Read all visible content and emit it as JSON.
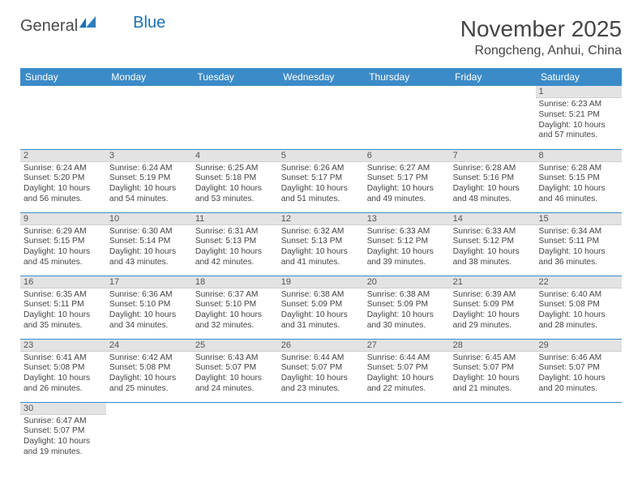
{
  "logo": {
    "text1": "General",
    "text2": "Blue"
  },
  "title": "November 2025",
  "subtitle": "Rongcheng, Anhui, China",
  "colors": {
    "header_bg": "#3b8bc8",
    "header_text": "#ffffff",
    "daynum_bg": "#e3e3e3",
    "text": "#444444",
    "row_border": "#3b8bc8"
  },
  "day_headers": [
    "Sunday",
    "Monday",
    "Tuesday",
    "Wednesday",
    "Thursday",
    "Friday",
    "Saturday"
  ],
  "weeks": [
    [
      null,
      null,
      null,
      null,
      null,
      null,
      {
        "n": "1",
        "sr": "6:23 AM",
        "ss": "5:21 PM",
        "dl": "10 hours and 57 minutes."
      }
    ],
    [
      {
        "n": "2",
        "sr": "6:24 AM",
        "ss": "5:20 PM",
        "dl": "10 hours and 56 minutes."
      },
      {
        "n": "3",
        "sr": "6:24 AM",
        "ss": "5:19 PM",
        "dl": "10 hours and 54 minutes."
      },
      {
        "n": "4",
        "sr": "6:25 AM",
        "ss": "5:18 PM",
        "dl": "10 hours and 53 minutes."
      },
      {
        "n": "5",
        "sr": "6:26 AM",
        "ss": "5:17 PM",
        "dl": "10 hours and 51 minutes."
      },
      {
        "n": "6",
        "sr": "6:27 AM",
        "ss": "5:17 PM",
        "dl": "10 hours and 49 minutes."
      },
      {
        "n": "7",
        "sr": "6:28 AM",
        "ss": "5:16 PM",
        "dl": "10 hours and 48 minutes."
      },
      {
        "n": "8",
        "sr": "6:28 AM",
        "ss": "5:15 PM",
        "dl": "10 hours and 46 minutes."
      }
    ],
    [
      {
        "n": "9",
        "sr": "6:29 AM",
        "ss": "5:15 PM",
        "dl": "10 hours and 45 minutes."
      },
      {
        "n": "10",
        "sr": "6:30 AM",
        "ss": "5:14 PM",
        "dl": "10 hours and 43 minutes."
      },
      {
        "n": "11",
        "sr": "6:31 AM",
        "ss": "5:13 PM",
        "dl": "10 hours and 42 minutes."
      },
      {
        "n": "12",
        "sr": "6:32 AM",
        "ss": "5:13 PM",
        "dl": "10 hours and 41 minutes."
      },
      {
        "n": "13",
        "sr": "6:33 AM",
        "ss": "5:12 PM",
        "dl": "10 hours and 39 minutes."
      },
      {
        "n": "14",
        "sr": "6:33 AM",
        "ss": "5:12 PM",
        "dl": "10 hours and 38 minutes."
      },
      {
        "n": "15",
        "sr": "6:34 AM",
        "ss": "5:11 PM",
        "dl": "10 hours and 36 minutes."
      }
    ],
    [
      {
        "n": "16",
        "sr": "6:35 AM",
        "ss": "5:11 PM",
        "dl": "10 hours and 35 minutes."
      },
      {
        "n": "17",
        "sr": "6:36 AM",
        "ss": "5:10 PM",
        "dl": "10 hours and 34 minutes."
      },
      {
        "n": "18",
        "sr": "6:37 AM",
        "ss": "5:10 PM",
        "dl": "10 hours and 32 minutes."
      },
      {
        "n": "19",
        "sr": "6:38 AM",
        "ss": "5:09 PM",
        "dl": "10 hours and 31 minutes."
      },
      {
        "n": "20",
        "sr": "6:38 AM",
        "ss": "5:09 PM",
        "dl": "10 hours and 30 minutes."
      },
      {
        "n": "21",
        "sr": "6:39 AM",
        "ss": "5:09 PM",
        "dl": "10 hours and 29 minutes."
      },
      {
        "n": "22",
        "sr": "6:40 AM",
        "ss": "5:08 PM",
        "dl": "10 hours and 28 minutes."
      }
    ],
    [
      {
        "n": "23",
        "sr": "6:41 AM",
        "ss": "5:08 PM",
        "dl": "10 hours and 26 minutes."
      },
      {
        "n": "24",
        "sr": "6:42 AM",
        "ss": "5:08 PM",
        "dl": "10 hours and 25 minutes."
      },
      {
        "n": "25",
        "sr": "6:43 AM",
        "ss": "5:07 PM",
        "dl": "10 hours and 24 minutes."
      },
      {
        "n": "26",
        "sr": "6:44 AM",
        "ss": "5:07 PM",
        "dl": "10 hours and 23 minutes."
      },
      {
        "n": "27",
        "sr": "6:44 AM",
        "ss": "5:07 PM",
        "dl": "10 hours and 22 minutes."
      },
      {
        "n": "28",
        "sr": "6:45 AM",
        "ss": "5:07 PM",
        "dl": "10 hours and 21 minutes."
      },
      {
        "n": "29",
        "sr": "6:46 AM",
        "ss": "5:07 PM",
        "dl": "10 hours and 20 minutes."
      }
    ],
    [
      {
        "n": "30",
        "sr": "6:47 AM",
        "ss": "5:07 PM",
        "dl": "10 hours and 19 minutes."
      },
      null,
      null,
      null,
      null,
      null,
      null
    ]
  ],
  "labels": {
    "sunrise": "Sunrise:",
    "sunset": "Sunset:",
    "daylight": "Daylight:"
  }
}
